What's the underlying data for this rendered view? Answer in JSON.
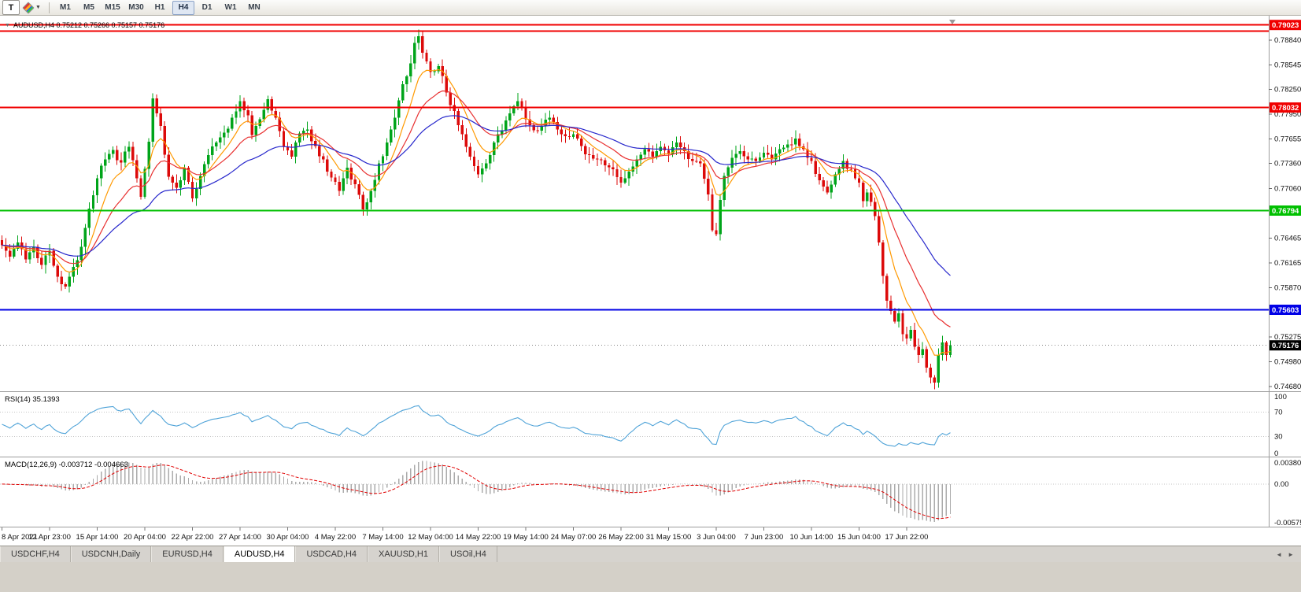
{
  "toolbar": {
    "text_tool": "T",
    "timeframes": [
      "M1",
      "M5",
      "M15",
      "M30",
      "H1",
      "H4",
      "D1",
      "W1",
      "MN"
    ],
    "active_timeframe": "H4"
  },
  "rsi_panel": {
    "label": "RSI(14) 35.1393",
    "name": "RSI(14)",
    "value": "35.1393",
    "axis_labels": [
      "100",
      "70",
      "30",
      "0"
    ],
    "levels": [
      70,
      30
    ],
    "line_color": "#4FA3D8"
  },
  "macd_panel": {
    "label": "MACD(12,26,9) -0.003712 -0.004663",
    "name": "MACD(12,26,9)",
    "values": [
      "-0.003712",
      "-0.004663"
    ],
    "axis_top": "0.003808",
    "axis_zero": "0.00",
    "axis_bottom": "-0.005757",
    "histogram_color": "#ABABAB",
    "signal_color": "#E00000"
  },
  "tabs": {
    "items": [
      "USDCHF,H4",
      "USDCNH,Daily",
      "EURUSD,H4",
      "AUDUSD,H4",
      "USDCAD,H4",
      "XAUUSD,H1",
      "USOil,H4"
    ],
    "active": "AUDUSD,H4"
  },
  "chart_data": {
    "type": "candlestick",
    "symbol": "AUDUSD",
    "timeframe": "H4",
    "symbol_ohlc_label": "AUDUSD,H4 0.75212 0.75266 0.75157 0.75176",
    "last_ohlc": {
      "open": 0.75212,
      "high": 0.75266,
      "low": 0.75157,
      "close": 0.75176
    },
    "n_candles": 240,
    "label_every": 12,
    "noise": 0.0009,
    "price_range": [
      0.74625,
      0.79115
    ],
    "up_color": "#00A41A",
    "down_color": "#DC0A0A",
    "price_scale_ticks": [
      "0.78840",
      "0.78545",
      "0.78250",
      "0.77950",
      "0.77655",
      "0.77360",
      "0.77060",
      "0.76465",
      "0.76165",
      "0.75870",
      "0.75275",
      "0.74980",
      "0.74680"
    ],
    "levels": [
      {
        "price": 0.79023,
        "label": "0.79023",
        "color": "#F00000",
        "badge": true
      },
      {
        "price": 0.7895,
        "label": "",
        "color": "#F00000",
        "badge": false
      },
      {
        "price": 0.78032,
        "label": "0.78032",
        "color": "#F00000",
        "badge": true
      },
      {
        "price": 0.76794,
        "label": "0.76794",
        "color": "#00C000",
        "badge": true
      },
      {
        "price": 0.75603,
        "label": "0.75603",
        "color": "#0000E6",
        "badge": true
      }
    ],
    "current_price": {
      "value": 0.75176,
      "label": "0.75176",
      "badge_color": "#000000"
    },
    "moving_averages": [
      {
        "period": 8,
        "color": "#FF9900"
      },
      {
        "period": 18,
        "color": "#E83030"
      },
      {
        "period": 40,
        "color": "#2828CC"
      }
    ],
    "indicators": {
      "rsi": {
        "period": 14,
        "current": 35.1393
      },
      "macd": {
        "fast": 12,
        "slow": 26,
        "signal": 9,
        "current": [
          -0.003712,
          -0.004663
        ]
      }
    },
    "x_labels": [
      "8 Apr 2021",
      "12 Apr 23:00",
      "15 Apr 14:00",
      "20 Apr 04:00",
      "22 Apr 22:00",
      "27 Apr 14:00",
      "30 Apr 04:00",
      "4 May 22:00",
      "7 May 14:00",
      "12 May 04:00",
      "14 May 22:00",
      "19 May 14:00",
      "24 May 07:00",
      "26 May 22:00",
      "31 May 15:00",
      "3 Jun 04:00",
      "7 Jun 23:00",
      "10 Jun 14:00",
      "15 Jun 04:00",
      "17 Jun 22:00"
    ],
    "close_waypoints": [
      [
        0,
        0.7638
      ],
      [
        2,
        0.7624
      ],
      [
        4,
        0.7641
      ],
      [
        6,
        0.7621
      ],
      [
        8,
        0.7636
      ],
      [
        10,
        0.7614
      ],
      [
        12,
        0.7631
      ],
      [
        14,
        0.76
      ],
      [
        16,
        0.7588
      ],
      [
        18,
        0.7612
      ],
      [
        20,
        0.7636
      ],
      [
        22,
        0.7682
      ],
      [
        24,
        0.7718
      ],
      [
        26,
        0.7741
      ],
      [
        28,
        0.7752
      ],
      [
        30,
        0.7737
      ],
      [
        32,
        0.7756
      ],
      [
        34,
        0.7718
      ],
      [
        35,
        0.7696
      ],
      [
        37,
        0.7762
      ],
      [
        38,
        0.7814
      ],
      [
        40,
        0.7781
      ],
      [
        42,
        0.772
      ],
      [
        44,
        0.7707
      ],
      [
        46,
        0.7731
      ],
      [
        48,
        0.7694
      ],
      [
        50,
        0.7721
      ],
      [
        52,
        0.7746
      ],
      [
        54,
        0.7761
      ],
      [
        56,
        0.7773
      ],
      [
        58,
        0.7791
      ],
      [
        60,
        0.7811
      ],
      [
        62,
        0.7794
      ],
      [
        63,
        0.777
      ],
      [
        65,
        0.7789
      ],
      [
        67,
        0.7813
      ],
      [
        69,
        0.7791
      ],
      [
        71,
        0.7756
      ],
      [
        73,
        0.7744
      ],
      [
        75,
        0.7772
      ],
      [
        77,
        0.7777
      ],
      [
        79,
        0.7757
      ],
      [
        81,
        0.7741
      ],
      [
        83,
        0.7719
      ],
      [
        85,
        0.7703
      ],
      [
        87,
        0.7731
      ],
      [
        89,
        0.7711
      ],
      [
        91,
        0.7681
      ],
      [
        93,
        0.7703
      ],
      [
        95,
        0.7736
      ],
      [
        97,
        0.7761
      ],
      [
        99,
        0.7791
      ],
      [
        101,
        0.7831
      ],
      [
        103,
        0.7856
      ],
      [
        104,
        0.7881
      ],
      [
        105,
        0.7889
      ],
      [
        106,
        0.7869
      ],
      [
        108,
        0.7846
      ],
      [
        110,
        0.7853
      ],
      [
        112,
        0.7821
      ],
      [
        114,
        0.7799
      ],
      [
        116,
        0.7771
      ],
      [
        118,
        0.7744
      ],
      [
        120,
        0.7723
      ],
      [
        122,
        0.7736
      ],
      [
        124,
        0.7761
      ],
      [
        126,
        0.7776
      ],
      [
        128,
        0.7796
      ],
      [
        130,
        0.7811
      ],
      [
        132,
        0.7789
      ],
      [
        134,
        0.7776
      ],
      [
        136,
        0.7781
      ],
      [
        138,
        0.7791
      ],
      [
        140,
        0.7777
      ],
      [
        142,
        0.7769
      ],
      [
        144,
        0.7771
      ],
      [
        146,
        0.7757
      ],
      [
        148,
        0.7746
      ],
      [
        150,
        0.7741
      ],
      [
        152,
        0.7734
      ],
      [
        154,
        0.7729
      ],
      [
        156,
        0.7713
      ],
      [
        158,
        0.7726
      ],
      [
        160,
        0.7741
      ],
      [
        162,
        0.7753
      ],
      [
        164,
        0.7744
      ],
      [
        166,
        0.7756
      ],
      [
        168,
        0.7747
      ],
      [
        170,
        0.7761
      ],
      [
        172,
        0.7751
      ],
      [
        174,
        0.7739
      ],
      [
        176,
        0.7736
      ],
      [
        178,
        0.7699
      ],
      [
        179,
        0.7656
      ],
      [
        180,
        0.7651
      ],
      [
        181,
        0.7692
      ],
      [
        182,
        0.7721
      ],
      [
        184,
        0.7743
      ],
      [
        186,
        0.7751
      ],
      [
        188,
        0.7741
      ],
      [
        190,
        0.7739
      ],
      [
        192,
        0.7749
      ],
      [
        194,
        0.7741
      ],
      [
        196,
        0.7753
      ],
      [
        198,
        0.7759
      ],
      [
        200,
        0.7766
      ],
      [
        202,
        0.7753
      ],
      [
        204,
        0.7739
      ],
      [
        206,
        0.7716
      ],
      [
        208,
        0.7701
      ],
      [
        210,
        0.7723
      ],
      [
        212,
        0.7739
      ],
      [
        214,
        0.7729
      ],
      [
        216,
        0.7713
      ],
      [
        217,
        0.7691
      ],
      [
        218,
        0.7701
      ],
      [
        220,
        0.7673
      ],
      [
        221,
        0.7641
      ],
      [
        222,
        0.7601
      ],
      [
        223,
        0.7571
      ],
      [
        224,
        0.7559
      ],
      [
        225,
        0.7546
      ],
      [
        226,
        0.7556
      ],
      [
        227,
        0.7531
      ],
      [
        228,
        0.7526
      ],
      [
        229,
        0.7536
      ],
      [
        230,
        0.7516
      ],
      [
        231,
        0.7506
      ],
      [
        232,
        0.7513
      ],
      [
        233,
        0.7491
      ],
      [
        234,
        0.7479
      ],
      [
        235,
        0.7473
      ],
      [
        236,
        0.7506
      ],
      [
        237,
        0.7521
      ],
      [
        238,
        0.7506
      ],
      [
        239,
        0.75176
      ]
    ]
  }
}
